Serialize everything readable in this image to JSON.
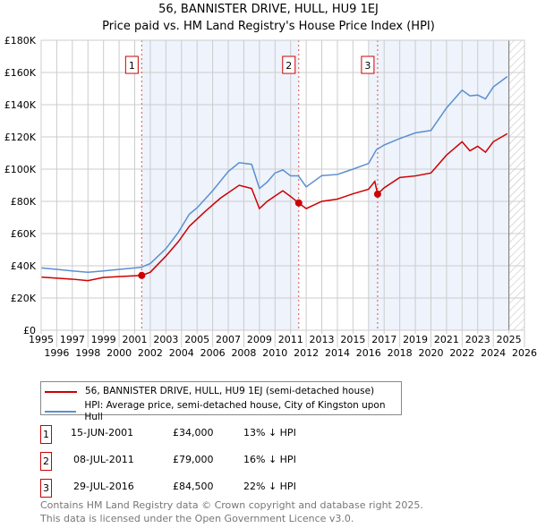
{
  "title": "56, BANNISTER DRIVE, HULL, HU9 1EJ",
  "subtitle": "Price paid vs. HM Land Registry's House Price Index (HPI)",
  "colors": {
    "property": "#cc0000",
    "hpi": "#5b8fd0",
    "shade": "#eef3fc",
    "grid": "#cccccc"
  },
  "chart_data": {
    "type": "line",
    "title": "56, BANNISTER DRIVE, HULL, HU9 1EJ",
    "xlim": [
      1995,
      2026
    ],
    "ylim": [
      0,
      180000
    ],
    "x_ticks": [
      "1995",
      "1996",
      "1997",
      "1998",
      "1999",
      "2000",
      "2001",
      "2002",
      "2003",
      "2004",
      "2005",
      "2006",
      "2007",
      "2008",
      "2009",
      "2010",
      "2011",
      "2012",
      "2013",
      "2014",
      "2015",
      "2016",
      "2017",
      "2018",
      "2019",
      "2020",
      "2021",
      "2022",
      "2023",
      "2024",
      "2025",
      "2026"
    ],
    "y_ticks": [
      {
        "v": 0,
        "label": "£0"
      },
      {
        "v": 20000,
        "label": "£20K"
      },
      {
        "v": 40000,
        "label": "£40K"
      },
      {
        "v": 60000,
        "label": "£60K"
      },
      {
        "v": 80000,
        "label": "£80K"
      },
      {
        "v": 100000,
        "label": "£100K"
      },
      {
        "v": 120000,
        "label": "£120K"
      },
      {
        "v": 140000,
        "label": "£140K"
      },
      {
        "v": 160000,
        "label": "£160K"
      },
      {
        "v": 180000,
        "label": "£180K"
      }
    ],
    "grid": true,
    "shaded_ranges": [
      [
        2001.45,
        2011.52
      ],
      [
        2016.0,
        2025.0
      ]
    ],
    "hatched_from": 2025.0,
    "series": [
      {
        "name": "56, BANNISTER DRIVE, HULL, HU9 1EJ (semi-detached house)",
        "color": "#cc0000",
        "x": [
          1995,
          1997,
          1998,
          1999,
          2001.45,
          2002,
          2003,
          2003.8,
          2004.5,
          2005.5,
          2006.5,
          2007.7,
          2008.5,
          2009,
          2009.5,
          2010.5,
          2011,
          2011.52,
          2012,
          2013,
          2014,
          2015,
          2016,
          2016.4,
          2016.58,
          2017,
          2018,
          2019,
          2020,
          2021,
          2022,
          2022.5,
          2023,
          2023.5,
          2024,
          2024.9
        ],
        "y": [
          33000,
          31700,
          30800,
          32800,
          34000,
          36000,
          46000,
          55000,
          64500,
          73600,
          82000,
          90000,
          88000,
          75500,
          80000,
          86600,
          83000,
          79000,
          75500,
          80000,
          81400,
          84700,
          87500,
          92400,
          84500,
          88400,
          94800,
          95800,
          97600,
          108700,
          117000,
          111400,
          114200,
          110500,
          117000,
          122000
        ]
      },
      {
        "name": "HPI: Average price, semi-detached house, City of Kingston upon Hull",
        "color": "#5b8fd0",
        "x": [
          1995,
          1996,
          1997,
          1998,
          1999,
          2000,
          2001.4,
          2002,
          2003,
          2003.8,
          2004.5,
          2005,
          2006,
          2007,
          2007.7,
          2008.5,
          2009,
          2009.5,
          2010,
          2010.5,
          2011,
          2011.5,
          2012,
          2013,
          2014,
          2015,
          2016,
          2016.5,
          2017,
          2018,
          2019,
          2020,
          2021,
          2022,
          2022.5,
          2023,
          2023.5,
          2024,
          2024.9
        ],
        "y": [
          38700,
          37800,
          36800,
          36000,
          36800,
          37800,
          39000,
          41400,
          50600,
          60800,
          72000,
          76000,
          86600,
          98500,
          104000,
          103000,
          88000,
          92000,
          97600,
          99500,
          95800,
          95800,
          89000,
          96000,
          96700,
          100000,
          103500,
          112000,
          115000,
          119000,
          122500,
          124000,
          138000,
          149000,
          145500,
          146000,
          143600,
          151000,
          157500
        ]
      }
    ],
    "sales": [
      {
        "label": "1",
        "x": 2001.45,
        "y": 34000
      },
      {
        "label": "2",
        "x": 2011.52,
        "y": 79000
      },
      {
        "label": "3",
        "x": 2016.58,
        "y": 84500
      }
    ]
  },
  "legend": {
    "property": "56, BANNISTER DRIVE, HULL, HU9 1EJ (semi-detached house)",
    "hpi": "HPI: Average price, semi-detached house, City of Kingston upon Hull"
  },
  "transactions": [
    {
      "num": "1",
      "date": "15-JUN-2001",
      "price": "£34,000",
      "diff": "13% ↓ HPI"
    },
    {
      "num": "2",
      "date": "08-JUL-2011",
      "price": "£79,000",
      "diff": "16% ↓ HPI"
    },
    {
      "num": "3",
      "date": "29-JUL-2016",
      "price": "£84,500",
      "diff": "22% ↓ HPI"
    }
  ],
  "footer": {
    "line1": "Contains HM Land Registry data © Crown copyright and database right 2025.",
    "line2": "This data is licensed under the Open Government Licence v3.0."
  }
}
